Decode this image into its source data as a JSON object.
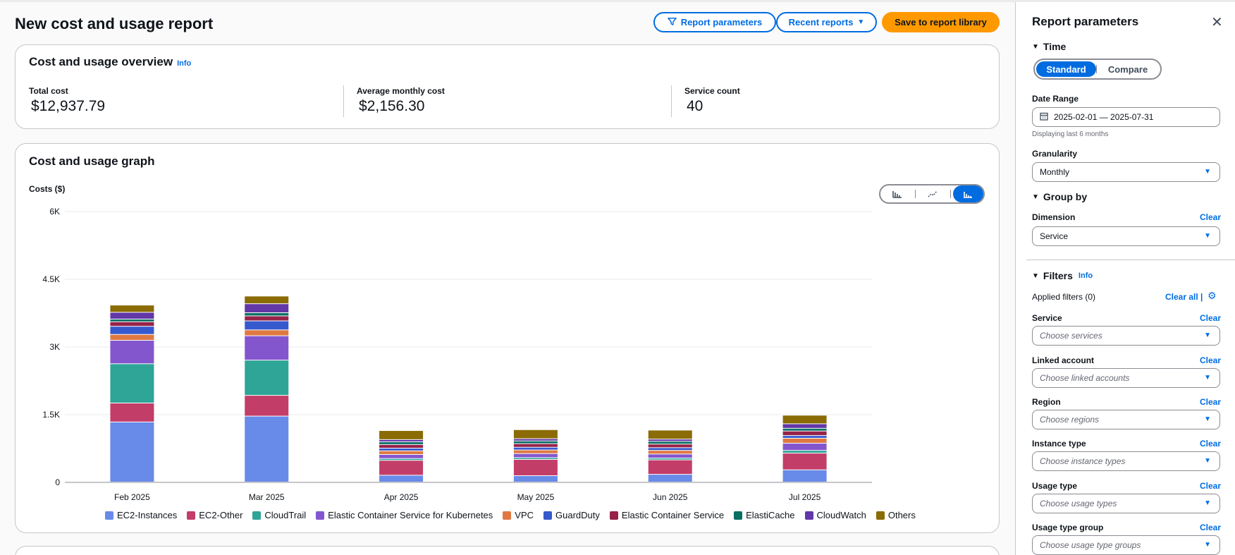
{
  "header": {
    "title": "New cost and usage report",
    "report_parameters_label": "Report parameters",
    "recent_reports_label": "Recent reports",
    "save_label": "Save to report library"
  },
  "overview": {
    "title": "Cost and usage overview",
    "info": "Info",
    "metrics": [
      {
        "label": "Total cost",
        "value": "$12,937.79"
      },
      {
        "label": "Average monthly cost",
        "value": "$2,156.30"
      },
      {
        "label": "Service count",
        "value": "40"
      }
    ]
  },
  "graph": {
    "title": "Cost and usage graph",
    "ylabel": "Costs ($)"
  },
  "chart_data": {
    "type": "bar",
    "stacked": true,
    "categories": [
      "Feb 2025",
      "Mar 2025",
      "Apr 2025",
      "May 2025",
      "Jun 2025",
      "Jul 2025"
    ],
    "ylabel": "Costs ($)",
    "ylim": [
      0,
      6000
    ],
    "yticks": [
      "0",
      "1.5K",
      "3K",
      "4.5K",
      "6K"
    ],
    "ytick_values": [
      0,
      1500,
      3000,
      4500,
      6000
    ],
    "legend_position": "bottom",
    "series": [
      {
        "name": "EC2-Instances",
        "color": "#688ae8",
        "values": [
          1330,
          1460,
          150,
          140,
          170,
          270
        ]
      },
      {
        "name": "EC2-Other",
        "color": "#c33d69",
        "values": [
          420,
          460,
          330,
          360,
          320,
          370
        ]
      },
      {
        "name": "CloudTrail",
        "color": "#2ea597",
        "values": [
          870,
          780,
          40,
          40,
          40,
          60
        ]
      },
      {
        "name": "Elastic Container Service for Kubernetes",
        "color": "#8456ce",
        "values": [
          520,
          540,
          90,
          90,
          90,
          160
        ]
      },
      {
        "name": "VPC",
        "color": "#e07941",
        "values": [
          130,
          130,
          80,
          80,
          80,
          110
        ]
      },
      {
        "name": "GuardDuty",
        "color": "#3759ce",
        "values": [
          180,
          200,
          60,
          60,
          60,
          60
        ]
      },
      {
        "name": "Elastic Container Service",
        "color": "#962249",
        "values": [
          100,
          110,
          80,
          80,
          80,
          100
        ]
      },
      {
        "name": "ElastiCache",
        "color": "#096f64",
        "values": [
          60,
          70,
          60,
          60,
          60,
          60
        ]
      },
      {
        "name": "CloudWatch",
        "color": "#6237a7",
        "values": [
          150,
          200,
          50,
          50,
          50,
          100
        ]
      },
      {
        "name": "Others",
        "color": "#8a6b05",
        "values": [
          160,
          170,
          200,
          200,
          200,
          190
        ]
      }
    ]
  },
  "panel": {
    "title": "Report parameters",
    "time_label": "Time",
    "standard_label": "Standard",
    "compare_label": "Compare",
    "date_range_label": "Date Range",
    "date_range_value": "2025-02-01 — 2025-07-31",
    "date_hint": "Displaying last 6 months",
    "granularity_label": "Granularity",
    "granularity_value": "Monthly",
    "group_by_label": "Group by",
    "dimension_label": "Dimension",
    "dimension_value": "Service",
    "clear_label": "Clear",
    "filters_label": "Filters",
    "filters_info": "Info",
    "applied_filters": "Applied filters (0)",
    "clear_all_label": "Clear all",
    "filters": [
      {
        "label": "Service",
        "placeholder": "Choose services"
      },
      {
        "label": "Linked account",
        "placeholder": "Choose linked accounts"
      },
      {
        "label": "Region",
        "placeholder": "Choose regions"
      },
      {
        "label": "Instance type",
        "placeholder": "Choose instance types"
      },
      {
        "label": "Usage type",
        "placeholder": "Choose usage types"
      },
      {
        "label": "Usage type group",
        "placeholder": "Choose usage type groups"
      }
    ]
  }
}
